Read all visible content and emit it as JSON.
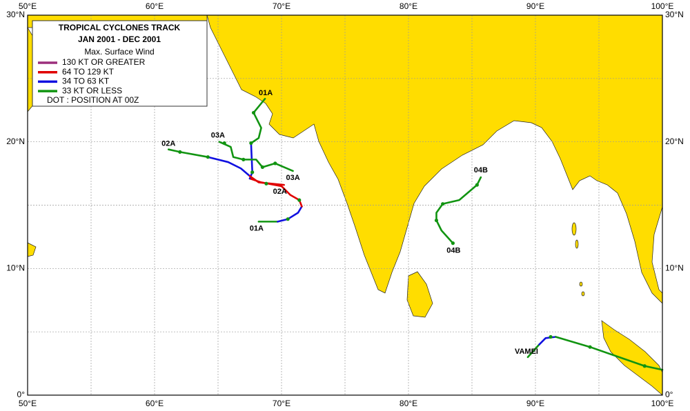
{
  "map": {
    "title": "TROPICAL  CYCLONES TRACK",
    "subtitle": "JAN 2001  -  DEC 2001",
    "legend": {
      "heading": "Max. Surface Wind",
      "items": [
        {
          "label": "130 KT OR GREATER",
          "color": "#9c2f7c"
        },
        {
          "label": "64 TO 129 KT",
          "color": "#e00000"
        },
        {
          "label": "34 TO 63 KT",
          "color": "#1010e0"
        },
        {
          "label": "33 KT OR LESS",
          "color": "#119411"
        }
      ],
      "note": "DOT : POSITION AT 00Z"
    },
    "xlim": [
      50,
      100
    ],
    "ylim": [
      0,
      30
    ],
    "xticks": [
      {
        "value": 50,
        "label": "50°E"
      },
      {
        "value": 60,
        "label": "60°E"
      },
      {
        "value": 70,
        "label": "70°E"
      },
      {
        "value": 80,
        "label": "80°E"
      },
      {
        "value": 90,
        "label": "90°E"
      },
      {
        "value": 100,
        "label": "100°E"
      }
    ],
    "yticks": [
      {
        "value": 0,
        "label": "0°"
      },
      {
        "value": 10,
        "label": "10°N"
      },
      {
        "value": 20,
        "label": "20°N"
      },
      {
        "value": 30,
        "label": "30°N"
      }
    ],
    "xgrid": [
      55,
      65,
      75,
      85,
      95
    ],
    "ygrid": [
      5,
      15,
      25
    ],
    "land_color": "#ffdd00",
    "tracks": [
      {
        "labels": [
          "01A",
          "01A"
        ],
        "segments": [
          {
            "color": "#119411",
            "lon": [
              68.2,
              69.7
            ],
            "lat": [
              13.7,
              13.7
            ]
          },
          {
            "color": "#1010e0",
            "lon": [
              69.7,
              70.5,
              71.3,
              71.6
            ],
            "lat": [
              13.7,
              13.9,
              14.4,
              14.9
            ]
          },
          {
            "color": "#e00000",
            "lon": [
              71.6,
              71.4,
              70.7,
              70.0,
              68.4,
              67.5
            ],
            "lat": [
              14.9,
              15.4,
              15.8,
              16.5,
              16.8,
              17.1
            ]
          },
          {
            "color": "#1010e0",
            "lon": [
              67.5,
              67.7,
              67.6
            ],
            "lat": [
              17.1,
              17.6,
              19.9
            ]
          },
          {
            "color": "#119411",
            "lon": [
              67.6,
              68.2,
              68.4,
              67.8,
              68.7
            ],
            "lat": [
              19.9,
              20.3,
              21.1,
              22.3,
              23.4
            ]
          }
        ],
        "dots": {
          "lon": [
            70.5,
            71.4,
            67.7,
            67.6,
            67.8
          ],
          "lat": [
            13.9,
            15.4,
            17.6,
            19.9,
            22.3
          ]
        }
      },
      {
        "labels": [
          "02A",
          "02A"
        ],
        "segments": [
          {
            "color": "#119411",
            "lon": [
              61.1,
              62.0,
              64.2
            ],
            "lat": [
              19.4,
              19.2,
              18.8
            ]
          },
          {
            "color": "#1010e0",
            "lon": [
              64.2,
              65.8,
              66.8,
              67.5
            ],
            "lat": [
              18.8,
              18.4,
              17.9,
              17.3
            ]
          },
          {
            "color": "#e00000",
            "lon": [
              67.5,
              68.2,
              70.2
            ],
            "lat": [
              17.3,
              16.8,
              16.6
            ]
          }
        ],
        "dots": {
          "lon": [
            62.0,
            64.2,
            68.8
          ],
          "lat": [
            19.2,
            18.8,
            16.7
          ]
        }
      },
      {
        "labels": [
          "03A",
          "03A"
        ],
        "segments": [
          {
            "color": "#119411",
            "lon": [
              65.1,
              66.0,
              66.2,
              67.0,
              68.0,
              68.5,
              69.5,
              70.9
            ],
            "lat": [
              20.0,
              19.6,
              18.8,
              18.6,
              18.6,
              18.0,
              18.3,
              17.7
            ]
          }
        ],
        "dots": {
          "lon": [
            65.5,
            67.0,
            68.5,
            69.5
          ],
          "lat": [
            19.9,
            18.6,
            18.0,
            18.3
          ]
        }
      },
      {
        "labels": [
          "04B",
          "04B"
        ],
        "segments": [
          {
            "color": "#119411",
            "lon": [
              83.5,
              82.6,
              82.2,
              82.2,
              82.7,
              84.0,
              85.4,
              85.7
            ],
            "lat": [
              12.0,
              13.0,
              13.8,
              14.4,
              15.1,
              15.4,
              16.6,
              17.2
            ]
          }
        ],
        "dots": {
          "lon": [
            83.5,
            82.2,
            82.7,
            85.4
          ],
          "lat": [
            12.0,
            13.8,
            15.1,
            16.6
          ]
        }
      },
      {
        "labels": [
          "VAMEI"
        ],
        "segments": [
          {
            "color": "#119411",
            "lon": [
              89.4,
              90.3
            ],
            "lat": [
              3.0,
              4.0
            ]
          },
          {
            "color": "#1010e0",
            "lon": [
              90.3,
              90.8,
              91.6
            ],
            "lat": [
              4.0,
              4.5,
              4.6
            ]
          },
          {
            "color": "#119411",
            "lon": [
              91.6,
              94.3,
              98.6,
              100
            ],
            "lat": [
              4.6,
              3.8,
              2.3,
              2.0
            ]
          }
        ],
        "dots": {
          "lon": [
            91.2,
            94.3,
            98.6
          ],
          "lat": [
            4.6,
            3.8,
            2.3
          ]
        }
      }
    ]
  }
}
